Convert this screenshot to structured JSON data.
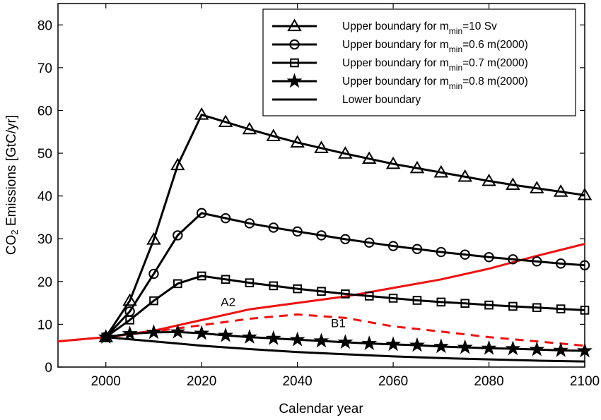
{
  "chart_data": {
    "type": "line",
    "xlabel": "Calendar year",
    "ylabel": {
      "prefix": "CO",
      "sub": "2",
      "rest": " Emissions [GtC/yr]"
    },
    "xlim": [
      1990,
      2100
    ],
    "ylim": [
      0,
      85
    ],
    "xticks": [
      2000,
      2020,
      2040,
      2060,
      2080,
      2100
    ],
    "yticks": [
      0,
      10,
      20,
      30,
      40,
      50,
      60,
      70,
      80
    ],
    "grid": false,
    "legend_position": "top-right",
    "series": [
      {
        "name": {
          "pre": "Upper boundary for m",
          "sub": "min",
          "post": "=10 Sv"
        },
        "marker": "triangle",
        "color": "#000000",
        "style": "solid",
        "x": [
          2000,
          2005,
          2010,
          2015,
          2020,
          2025,
          2030,
          2035,
          2040,
          2045,
          2050,
          2055,
          2060,
          2065,
          2070,
          2075,
          2080,
          2085,
          2090,
          2095,
          2100
        ],
        "y": [
          7,
          15.5,
          29.8,
          47.2,
          59,
          57.3,
          55.6,
          54,
          52.5,
          51.2,
          49.9,
          48.7,
          47.5,
          46.5,
          45.5,
          44.5,
          43.5,
          42.6,
          41.8,
          41,
          40.2
        ]
      },
      {
        "name": {
          "pre": "Upper boundary for m",
          "sub": "min",
          "post": "=0.6 m(2000)"
        },
        "marker": "circle",
        "color": "#000000",
        "style": "solid",
        "x": [
          2000,
          2005,
          2010,
          2015,
          2020,
          2025,
          2030,
          2035,
          2040,
          2045,
          2050,
          2055,
          2060,
          2065,
          2070,
          2075,
          2080,
          2085,
          2090,
          2095,
          2100
        ],
        "y": [
          7,
          13,
          21.8,
          30.8,
          36,
          34.8,
          33.6,
          32.6,
          31.7,
          30.8,
          29.9,
          29.1,
          28.3,
          27.6,
          26.9,
          26.3,
          25.7,
          25.2,
          24.7,
          24.2,
          23.8
        ]
      },
      {
        "name": {
          "pre": "Upper boundary for m",
          "sub": "min",
          "post": "=0.7 m(2000)"
        },
        "marker": "square",
        "color": "#000000",
        "style": "solid",
        "x": [
          2000,
          2005,
          2010,
          2015,
          2020,
          2025,
          2030,
          2035,
          2040,
          2045,
          2050,
          2055,
          2060,
          2065,
          2070,
          2075,
          2080,
          2085,
          2090,
          2095,
          2100
        ],
        "y": [
          7,
          11,
          15.5,
          19.5,
          21.3,
          20.5,
          19.7,
          19,
          18.3,
          17.7,
          17.1,
          16.6,
          16.1,
          15.6,
          15.2,
          14.9,
          14.5,
          14.2,
          13.9,
          13.6,
          13.3
        ]
      },
      {
        "name": {
          "pre": "Upper boundary for m",
          "sub": "min",
          "post": "=0.8 m(2000)"
        },
        "marker": "star",
        "color": "#000000",
        "style": "solid",
        "x": [
          2000,
          2005,
          2010,
          2015,
          2020,
          2025,
          2030,
          2035,
          2040,
          2045,
          2050,
          2055,
          2060,
          2065,
          2070,
          2075,
          2080,
          2085,
          2090,
          2095,
          2100
        ],
        "y": [
          7,
          7.8,
          8.1,
          8.2,
          7.9,
          7.4,
          7,
          6.7,
          6.4,
          6.1,
          5.8,
          5.5,
          5.3,
          5.1,
          4.8,
          4.6,
          4.4,
          4.3,
          4.1,
          3.9,
          3.8
        ]
      },
      {
        "name": {
          "pre": "Lower boundary",
          "sub": "",
          "post": ""
        },
        "marker": "none",
        "color": "#000000",
        "style": "solid",
        "x": [
          2000,
          2010,
          2020,
          2030,
          2040,
          2050,
          2060,
          2070,
          2080,
          2090,
          2100
        ],
        "y": [
          7,
          6,
          5,
          4.2,
          3.5,
          3,
          2.5,
          2.1,
          1.8,
          1.5,
          1.3
        ]
      },
      {
        "name": "A2",
        "marker": "none",
        "color": "#ee1111",
        "style": "solid",
        "x": [
          1990,
          2000,
          2010,
          2020,
          2030,
          2040,
          2050,
          2060,
          2070,
          2080,
          2090,
          2100
        ],
        "y": [
          6,
          7,
          8.5,
          11,
          13.5,
          15,
          16.5,
          18.5,
          20.5,
          23,
          26,
          28.8
        ]
      },
      {
        "name": "B1",
        "marker": "none",
        "color": "#ee1111",
        "style": "dashed",
        "x": [
          1990,
          2000,
          2010,
          2020,
          2030,
          2040,
          2050,
          2060,
          2070,
          2080,
          2090,
          2100
        ],
        "y": [
          6,
          7,
          8.3,
          9.8,
          11.3,
          12.3,
          11.5,
          9.5,
          8.3,
          7,
          6,
          5
        ]
      }
    ],
    "annotations": [
      {
        "text": "A2",
        "x": 2024,
        "y": 14.3
      },
      {
        "text": "B1",
        "x": 2047,
        "y": 9.3
      }
    ]
  }
}
